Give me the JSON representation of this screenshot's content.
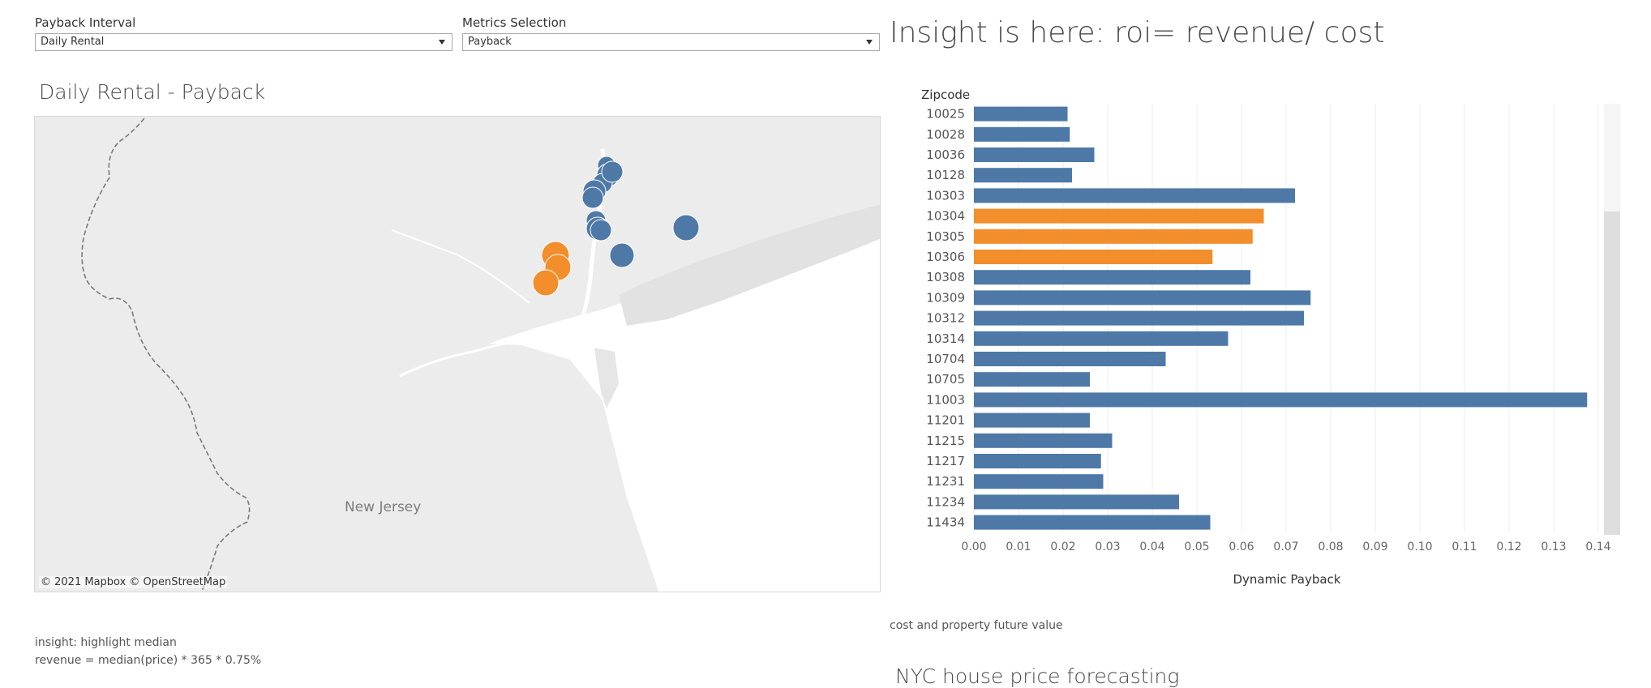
{
  "filters": {
    "payback_interval": {
      "label": "Payback Interval",
      "value": "Daily Rental"
    },
    "metrics_selection": {
      "label": "Metrics Selection",
      "value": "Payback"
    }
  },
  "insight_title": "Insight is here: roi= revenue/ cost",
  "map": {
    "title": "Daily Rental - Payback",
    "region_label": "New Jersey",
    "attribution": "© 2021 Mapbox  © OpenStreetMap"
  },
  "captions": {
    "insight": "insight: highlight median",
    "revenue_formula": "revenue = median(price) * 365 * 0.75%",
    "cost_note": "cost and property future value",
    "forecast_title": "NYC house price forecasting"
  },
  "colors": {
    "blue": "#4e79a7",
    "orange": "#f28e2b",
    "grid": "#ececec"
  },
  "chart_data": {
    "type": "bar",
    "orientation": "horizontal",
    "row_header": "Zipcode",
    "xlabel": "Dynamic Payback",
    "xlim": [
      0,
      0.14
    ],
    "xticks": [
      "0.00",
      "0.01",
      "0.02",
      "0.03",
      "0.04",
      "0.05",
      "0.06",
      "0.07",
      "0.08",
      "0.09",
      "0.10",
      "0.11",
      "0.12",
      "0.13",
      "0.14"
    ],
    "categories": [
      "10025",
      "10028",
      "10036",
      "10128",
      "10303",
      "10304",
      "10305",
      "10306",
      "10308",
      "10309",
      "10312",
      "10314",
      "10704",
      "10705",
      "11003",
      "11201",
      "11215",
      "11217",
      "11231",
      "11234",
      "11434"
    ],
    "values": [
      0.021,
      0.0215,
      0.027,
      0.022,
      0.072,
      0.065,
      0.0625,
      0.0535,
      0.062,
      0.0755,
      0.074,
      0.057,
      0.043,
      0.026,
      0.1375,
      0.026,
      0.031,
      0.0285,
      0.029,
      0.046,
      0.053
    ],
    "highlight": [
      "10304",
      "10305",
      "10306"
    ]
  }
}
